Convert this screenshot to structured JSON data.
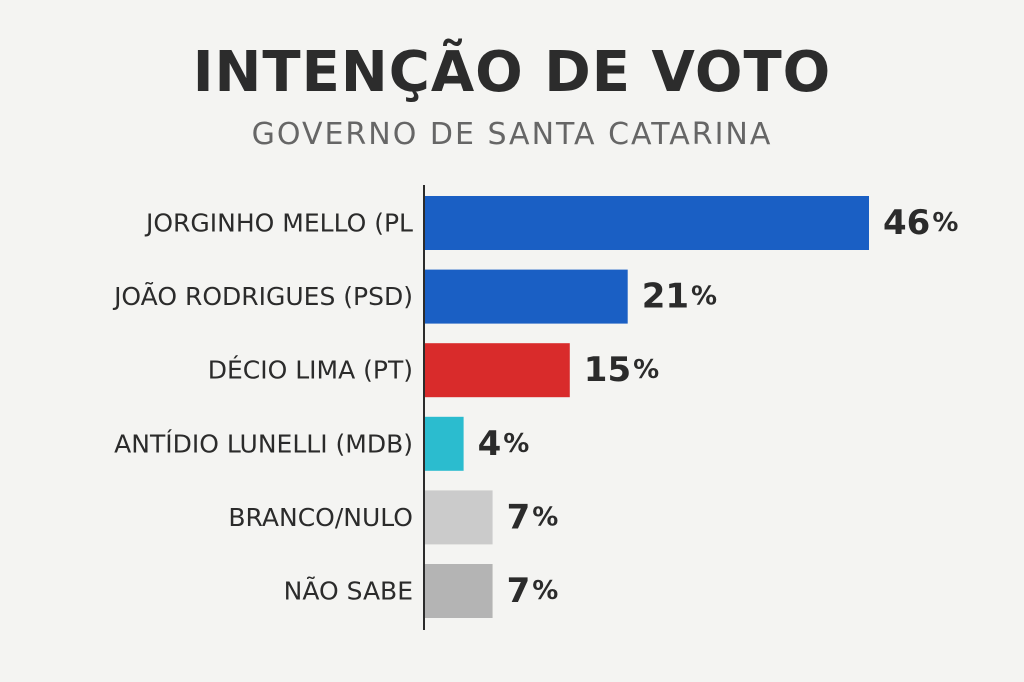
{
  "chart_data": {
    "type": "bar",
    "orientation": "horizontal",
    "title": "INTENÇÃO DE VOTO",
    "subtitle": "GOVERNO DE SANTA CATARINA",
    "categories": [
      "JORGINHO MELLO (PL",
      "JOÃO RODRIGUES (PSD)",
      "DÉCIO LIMA (PT)",
      "ANTÍDIO LUNELLI (MDB)",
      "BRANCO/NULO",
      "NÃO SABE"
    ],
    "values": [
      46,
      21,
      15,
      4,
      7,
      7
    ],
    "value_suffix": "%",
    "colors": [
      "#1a5fc4",
      "#1a5fc4",
      "#d92b2b",
      "#2bbccf",
      "#cbcbcb",
      "#b4b4b4"
    ],
    "xlim": [
      0,
      46
    ],
    "grid": false,
    "legend": "none"
  }
}
